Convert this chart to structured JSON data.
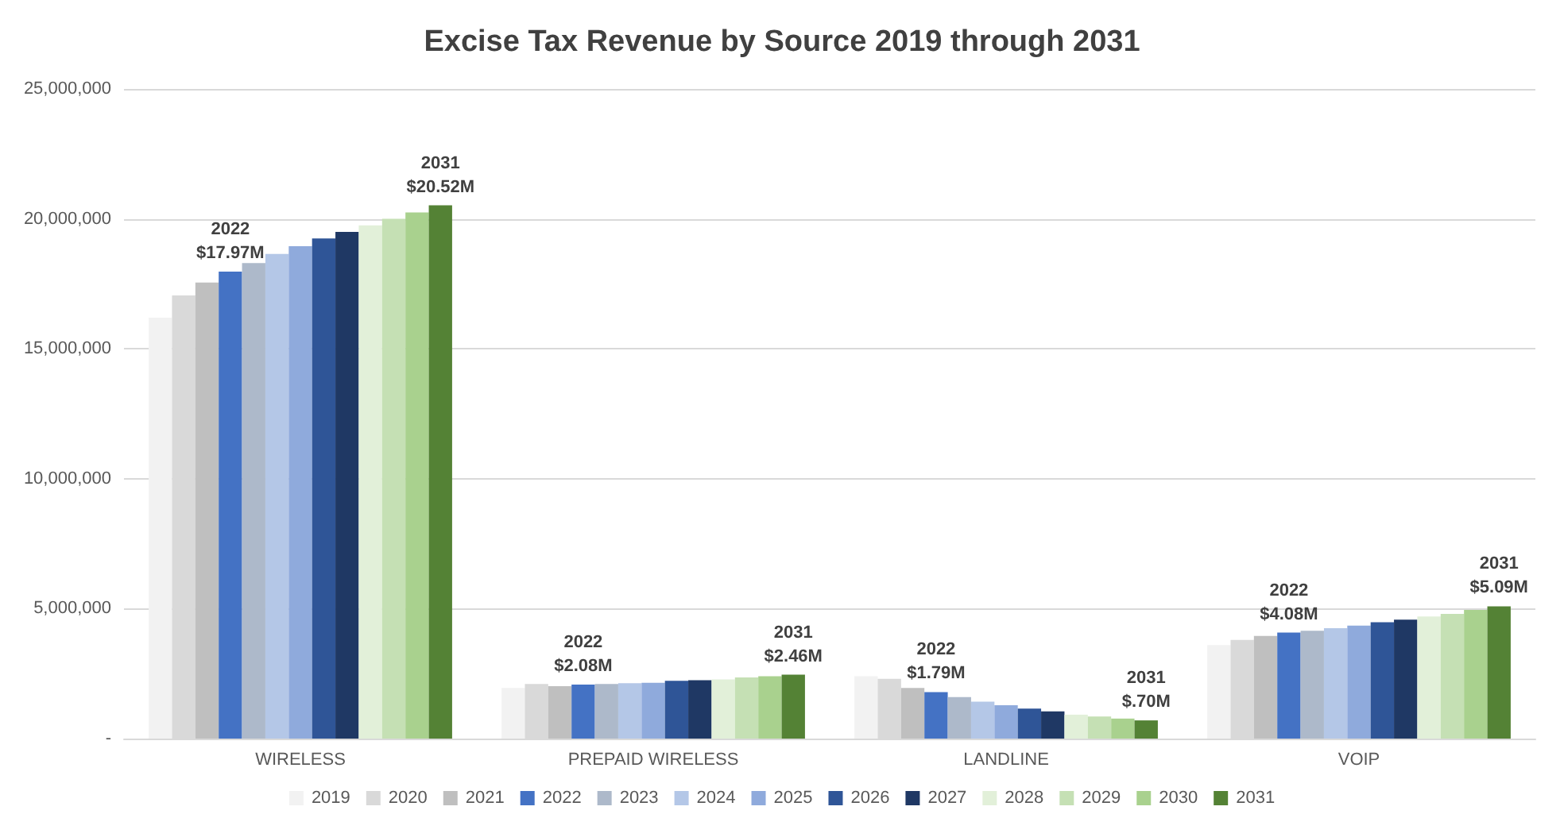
{
  "chart_data": {
    "type": "bar",
    "title": "Excise Tax Revenue by Source 2019 through 2031",
    "categories": [
      "WIRELESS",
      "PREPAID WIRELESS",
      "LANDLINE",
      "VOIP"
    ],
    "series": [
      {
        "name": "2019",
        "color": "#f2f2f2",
        "values": [
          16200000,
          1950000,
          2400000,
          3600000
        ]
      },
      {
        "name": "2020",
        "color": "#d9d9d9",
        "values": [
          17050000,
          2100000,
          2300000,
          3800000
        ]
      },
      {
        "name": "2021",
        "color": "#bfbfbf",
        "values": [
          17550000,
          2020000,
          1950000,
          3950000
        ]
      },
      {
        "name": "2022",
        "color": "#4472c4",
        "values": [
          17970000,
          2080000,
          1790000,
          4080000
        ],
        "value_labels": [
          "2022\n$17.97M",
          "2022\n$2.08M",
          "2022\n$1.79M",
          "2022\n$4.08M"
        ]
      },
      {
        "name": "2023",
        "color": "#adb9ca",
        "values": [
          18300000,
          2100000,
          1600000,
          4150000
        ]
      },
      {
        "name": "2024",
        "color": "#b4c7e7",
        "values": [
          18650000,
          2130000,
          1420000,
          4250000
        ]
      },
      {
        "name": "2025",
        "color": "#8faadc",
        "values": [
          18950000,
          2150000,
          1280000,
          4350000
        ]
      },
      {
        "name": "2026",
        "color": "#2f5597",
        "values": [
          19250000,
          2220000,
          1150000,
          4480000
        ]
      },
      {
        "name": "2027",
        "color": "#1f3864",
        "values": [
          19500000,
          2250000,
          1050000,
          4580000
        ]
      },
      {
        "name": "2028",
        "color": "#e2f0d9",
        "values": [
          19750000,
          2280000,
          920000,
          4700000
        ]
      },
      {
        "name": "2029",
        "color": "#c5e0b4",
        "values": [
          20000000,
          2350000,
          850000,
          4800000
        ]
      },
      {
        "name": "2030",
        "color": "#a9d18e",
        "values": [
          20250000,
          2400000,
          770000,
          4950000
        ]
      },
      {
        "name": "2031",
        "color": "#548235",
        "values": [
          20520000,
          2460000,
          700000,
          5090000
        ],
        "value_labels": [
          "2031\n$20.52M",
          "2031\n$2.46M",
          "2031\n$.70M",
          "2031\n$5.09M"
        ]
      }
    ],
    "ylim": [
      0,
      25000000
    ],
    "yticks": [
      {
        "value": 0,
        "label": "-"
      },
      {
        "value": 5000000,
        "label": "5,000,000"
      },
      {
        "value": 10000000,
        "label": "10,000,000"
      },
      {
        "value": 15000000,
        "label": "15,000,000"
      },
      {
        "value": 20000000,
        "label": "20,000,000"
      },
      {
        "value": 25000000,
        "label": "25,000,000"
      }
    ],
    "grid": "y",
    "legend": "bottom"
  }
}
